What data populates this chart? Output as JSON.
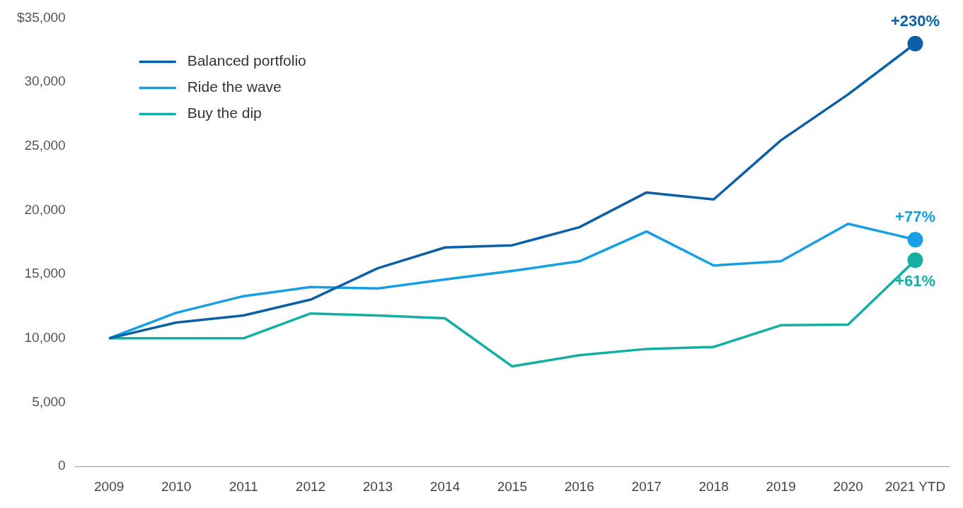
{
  "chart_data": {
    "type": "line",
    "categories": [
      "2009",
      "2010",
      "2011",
      "2012",
      "2013",
      "2014",
      "2015",
      "2016",
      "2017",
      "2018",
      "2019",
      "2020",
      "2021 YTD"
    ],
    "series": [
      {
        "name": "Balanced portfolio",
        "color": "#0b5fa5",
        "values": [
          10000,
          11230,
          11780,
          13020,
          15470,
          17090,
          17260,
          18670,
          21380,
          20840,
          25450,
          29030,
          33000
        ]
      },
      {
        "name": "Ride the wave",
        "color": "#169fe3",
        "values": [
          10000,
          11990,
          13290,
          14000,
          13890,
          14600,
          15250,
          16010,
          18340,
          15680,
          16010,
          18940,
          17700
        ]
      },
      {
        "name": "Buy the dip",
        "color": "#14aea3",
        "values": [
          10000,
          10000,
          10000,
          11940,
          11780,
          11560,
          7810,
          8680,
          9170,
          9330,
          11020,
          11070,
          16100
        ]
      }
    ],
    "ylim": [
      0,
      35000
    ],
    "yticks": [
      0,
      {
        "value": 5000,
        "label": "5,000"
      },
      {
        "value": 10000,
        "label": "10,000"
      },
      {
        "value": 15000,
        "label": "15,000"
      },
      {
        "value": 20000,
        "label": "20,000"
      },
      {
        "value": 25000,
        "label": "25,000"
      },
      {
        "value": 30000,
        "label": "30,000"
      },
      {
        "value": 35000,
        "label": "$35,000"
      }
    ],
    "grid": false,
    "legend": "top left",
    "line_style": "solid",
    "annotations": [
      {
        "text": "+230%",
        "x": "2021 YTD",
        "y": 33000
      },
      {
        "text": "+77%",
        "x": "2021 YTD",
        "y": 17700
      },
      {
        "text": "+61%",
        "x": "2021 YTD",
        "y": 16100
      }
    ]
  }
}
